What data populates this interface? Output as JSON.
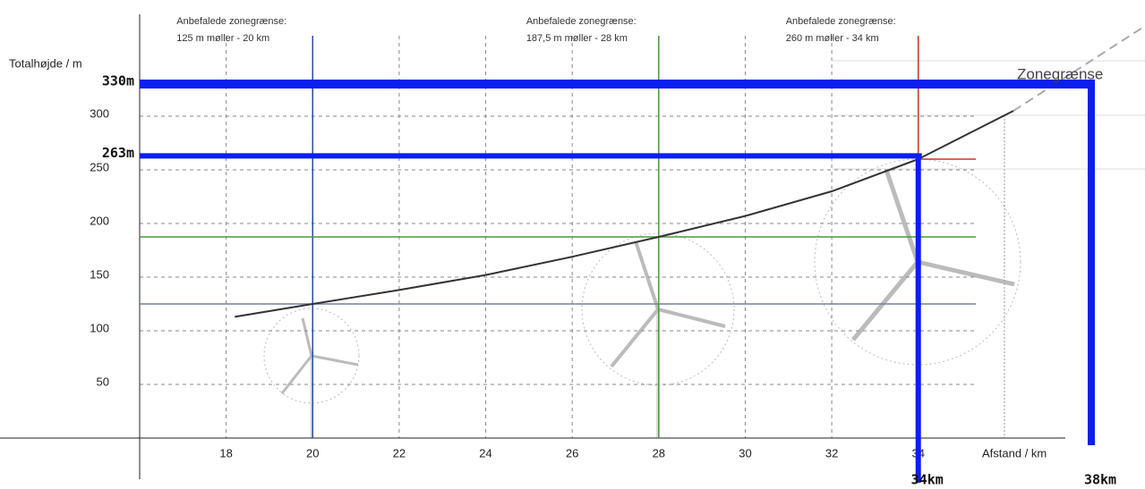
{
  "chart_data": {
    "type": "line",
    "y_label": "Totalhøjde / m",
    "x_label": "Afstand / km",
    "xlim": [
      16,
      38
    ],
    "ylim": [
      0,
      395
    ],
    "xticks": [
      18,
      20,
      22,
      24,
      26,
      28,
      30,
      32,
      34
    ],
    "yticks": [
      50,
      100,
      150,
      200,
      250,
      300
    ],
    "grid": true,
    "series": [
      {
        "color": "#333333",
        "x": [
          18.2,
          20,
          22,
          24,
          26,
          28,
          30,
          32,
          34,
          36.2
        ],
        "values": [
          113,
          125,
          138,
          152,
          169,
          187.5,
          207,
          230,
          260,
          305
        ]
      },
      {
        "color": "#aaaaaa",
        "dash": true,
        "x": [
          36.2,
          39.2
        ],
        "values": [
          305,
          383
        ]
      }
    ],
    "annotations": [
      {
        "x": 20,
        "y": 125,
        "color": "#2b4a9a",
        "lines": [
          "Anbefalede zonegrænse:",
          "125 m møller - 20 km"
        ]
      },
      {
        "x": 28,
        "y": 187.5,
        "color": "#4a9a3a",
        "lines": [
          "Anbefalede zonegrænse:",
          "187,5 m møller - 28 km"
        ]
      },
      {
        "x": 34,
        "y": 260,
        "color": "#cc3322",
        "lines": [
          "Anbefalede zonegrænse:",
          "260 m møller - 34 km"
        ]
      }
    ],
    "limit_lines": [
      {
        "y": 330,
        "y_label": "330m",
        "x": 38,
        "x_label": "38km"
      },
      {
        "y": 263,
        "y_label": "263m",
        "x": 34,
        "x_label": "34km"
      }
    ],
    "limit_color": "#0a1ff0",
    "zone_label": "Zonegrænse"
  }
}
